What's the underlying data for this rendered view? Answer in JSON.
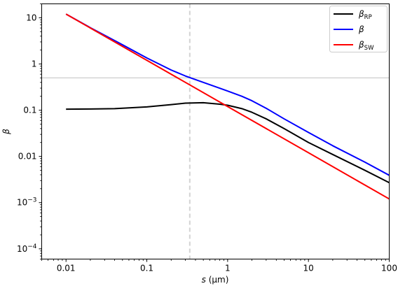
{
  "chart_data": {
    "type": "line",
    "xlabel_var": "s",
    "xlabel_unit": " (μm)",
    "ylabel": "β",
    "xscale": "log",
    "yscale": "log",
    "xlim": [
      0.005,
      100
    ],
    "ylim": [
      6e-05,
      20
    ],
    "x_ticks": [
      {
        "value": 0.01,
        "label": "0.01"
      },
      {
        "value": 0.1,
        "label": "0.1"
      },
      {
        "value": 1,
        "label": "1"
      },
      {
        "value": 10,
        "label": "10"
      },
      {
        "value": 100,
        "label": "100"
      }
    ],
    "y_ticks": [
      {
        "value": 0.0001,
        "base": "10",
        "exp": "−4"
      },
      {
        "value": 0.001,
        "base": "10",
        "exp": "−3"
      },
      {
        "value": 0.01,
        "label": "0.01"
      },
      {
        "value": 0.1,
        "label": "0.1"
      },
      {
        "value": 1,
        "label": "1"
      },
      {
        "value": 10,
        "label": "10"
      }
    ],
    "reference_lines": {
      "vertical_dashed_x": 0.34,
      "horizontal_y": 0.5
    },
    "series": [
      {
        "name": "β",
        "sub": "RP",
        "color": "#000000",
        "x": [
          0.01,
          0.02,
          0.04,
          0.1,
          0.2,
          0.3,
          0.5,
          0.8,
          1.0,
          1.5,
          2,
          3,
          5,
          10,
          20,
          50,
          100
        ],
        "y": [
          0.105,
          0.106,
          0.108,
          0.118,
          0.132,
          0.142,
          0.145,
          0.135,
          0.128,
          0.108,
          0.09,
          0.065,
          0.04,
          0.02,
          0.011,
          0.005,
          0.0027
        ]
      },
      {
        "name": "β",
        "sub": "",
        "color": "#0000ff",
        "x": [
          0.01,
          0.02,
          0.05,
          0.1,
          0.2,
          0.3,
          0.5,
          1.0,
          1.5,
          2,
          3,
          5,
          10,
          20,
          50,
          100
        ],
        "y": [
          12,
          6.1,
          2.6,
          1.35,
          0.74,
          0.55,
          0.4,
          0.26,
          0.2,
          0.16,
          0.11,
          0.065,
          0.033,
          0.017,
          0.0075,
          0.0039
        ]
      },
      {
        "name": "β",
        "sub": "SW",
        "color": "#ff0000",
        "x": [
          0.01,
          0.1,
          1,
          10,
          100
        ],
        "y": [
          12,
          1.2,
          0.12,
          0.012,
          0.0012
        ]
      }
    ]
  }
}
